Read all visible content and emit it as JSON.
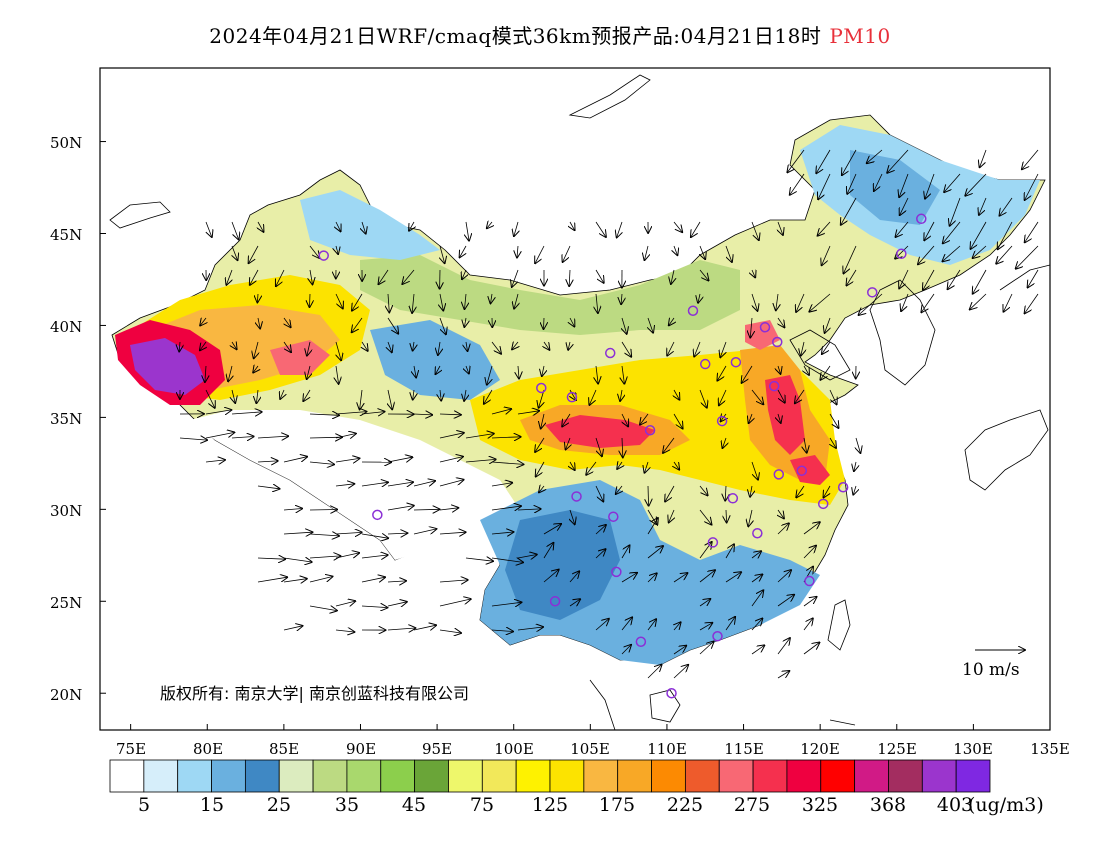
{
  "title": {
    "main": "2024年04月21日WRF/cmaq模式36km预报产品:04月21日18时",
    "variable": "PM10",
    "variable_color": "#e8303a"
  },
  "axes": {
    "lat_labels": [
      "50N",
      "45N",
      "40N",
      "35N",
      "30N",
      "25N",
      "20N"
    ],
    "lon_labels": [
      "75E",
      "80E",
      "85E",
      "90E",
      "95E",
      "100E",
      "105E",
      "110E",
      "115E",
      "120E",
      "125E",
      "130E",
      "135E"
    ],
    "lon_range": [
      73,
      135
    ],
    "lat_range": [
      18,
      54
    ]
  },
  "colorbar": {
    "colors": [
      "#ffffff",
      "#d6eefa",
      "#9ed8f4",
      "#6ab0df",
      "#3f88c4",
      "#dcecbf",
      "#bcda82",
      "#a9d86d",
      "#8ccf4c",
      "#6aa538",
      "#eef76b",
      "#f2e85a",
      "#fef200",
      "#fce300",
      "#f9b741",
      "#f8a826",
      "#fc8a02",
      "#ee5b2c",
      "#f86874",
      "#f5304e",
      "#ef0040",
      "#ff0000",
      "#d11a86",
      "#a32d60",
      "#9b35cd",
      "#7f28e2"
    ],
    "labels": [
      "5",
      "15",
      "25",
      "35",
      "45",
      "75",
      "125",
      "175",
      "225",
      "275",
      "325",
      "368",
      "403"
    ],
    "unit": "(ug/m3)"
  },
  "copyright": "版权所有: 南京大学| 南京创蓝科技有限公司",
  "wind_reference": "10 m/s",
  "stations": [
    {
      "name": "urumqi",
      "lon": 87.6,
      "lat": 43.8
    },
    {
      "name": "lhasa",
      "lon": 91.1,
      "lat": 29.7
    },
    {
      "name": "xining",
      "lon": 101.8,
      "lat": 36.6
    },
    {
      "name": "lanzhou",
      "lon": 103.8,
      "lat": 36.1
    },
    {
      "name": "yinchuan",
      "lon": 106.3,
      "lat": 38.5
    },
    {
      "name": "hohhot",
      "lon": 111.7,
      "lat": 40.8
    },
    {
      "name": "beijing",
      "lon": 116.4,
      "lat": 39.9
    },
    {
      "name": "tianjin",
      "lon": 117.2,
      "lat": 39.1
    },
    {
      "name": "shijiazhuang",
      "lon": 114.5,
      "lat": 38.0
    },
    {
      "name": "taiyuan",
      "lon": 112.5,
      "lat": 37.9
    },
    {
      "name": "jinan",
      "lon": 117.0,
      "lat": 36.7
    },
    {
      "name": "zhengzhou",
      "lon": 113.6,
      "lat": 34.8
    },
    {
      "name": "xian",
      "lon": 108.9,
      "lat": 34.3
    },
    {
      "name": "hefei",
      "lon": 117.3,
      "lat": 31.9
    },
    {
      "name": "nanjing",
      "lon": 118.8,
      "lat": 32.1
    },
    {
      "name": "shanghai",
      "lon": 121.5,
      "lat": 31.2
    },
    {
      "name": "hangzhou",
      "lon": 120.2,
      "lat": 30.3
    },
    {
      "name": "wuhan",
      "lon": 114.3,
      "lat": 30.6
    },
    {
      "name": "changsha",
      "lon": 113.0,
      "lat": 28.2
    },
    {
      "name": "nanchang",
      "lon": 115.9,
      "lat": 28.7
    },
    {
      "name": "fuzhou",
      "lon": 119.3,
      "lat": 26.1
    },
    {
      "name": "guangzhou",
      "lon": 113.3,
      "lat": 23.1
    },
    {
      "name": "nanning",
      "lon": 108.3,
      "lat": 22.8
    },
    {
      "name": "haikou",
      "lon": 110.3,
      "lat": 20.0
    },
    {
      "name": "kunming",
      "lon": 102.7,
      "lat": 25.0
    },
    {
      "name": "guiyang",
      "lon": 106.7,
      "lat": 26.6
    },
    {
      "name": "chongqing",
      "lon": 106.5,
      "lat": 29.6
    },
    {
      "name": "chengdu",
      "lon": 104.1,
      "lat": 30.7
    },
    {
      "name": "shenyang",
      "lon": 123.4,
      "lat": 41.8
    },
    {
      "name": "changchun",
      "lon": 125.3,
      "lat": 43.9
    },
    {
      "name": "harbin",
      "lon": 126.6,
      "lat": 45.8
    }
  ]
}
